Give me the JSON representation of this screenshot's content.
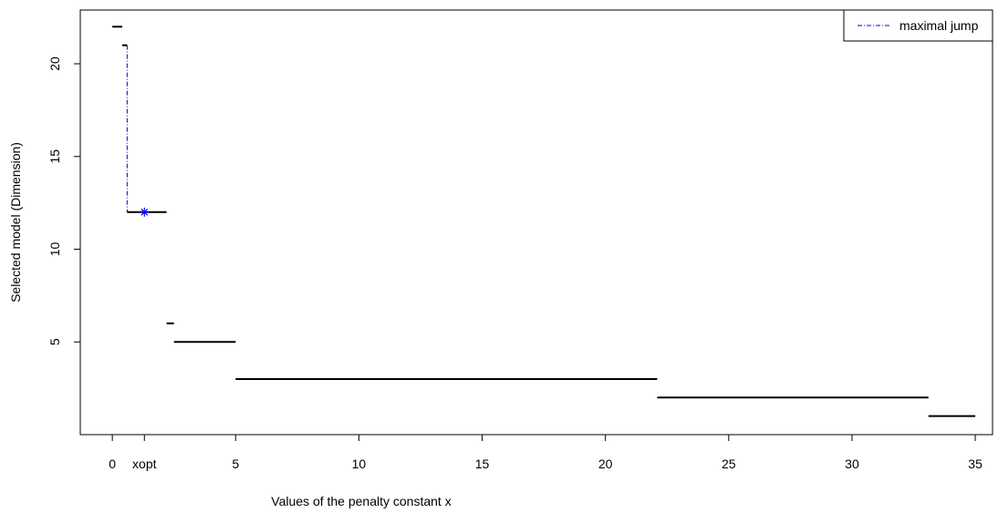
{
  "chart_data": {
    "type": "line",
    "title": "",
    "xlabel": "Values of the penalty constant x",
    "ylabel": "Selected model (Dimension)",
    "xlim": [
      -1.3,
      35.7
    ],
    "ylim": [
      0,
      22.9
    ],
    "x_ticks": [
      {
        "value": 0,
        "label": "0"
      },
      {
        "value": 1.3,
        "label": "xopt"
      },
      {
        "value": 5,
        "label": "5"
      },
      {
        "value": 10,
        "label": "10"
      },
      {
        "value": 15,
        "label": "15"
      },
      {
        "value": 20,
        "label": "20"
      },
      {
        "value": 25,
        "label": "25"
      },
      {
        "value": 30,
        "label": "30"
      },
      {
        "value": 35,
        "label": "35"
      }
    ],
    "y_ticks": [
      {
        "value": 5,
        "label": "5"
      },
      {
        "value": 10,
        "label": "10"
      },
      {
        "value": 15,
        "label": "15"
      },
      {
        "value": 20,
        "label": "20"
      }
    ],
    "segments": [
      {
        "x_start": 0.0,
        "x_end": 0.4,
        "y": 22
      },
      {
        "x_start": 0.4,
        "x_end": 0.6,
        "y": 21
      },
      {
        "x_start": 0.6,
        "x_end": 2.2,
        "y": 12
      },
      {
        "x_start": 2.2,
        "x_end": 2.5,
        "y": 6
      },
      {
        "x_start": 2.5,
        "x_end": 5.0,
        "y": 5
      },
      {
        "x_start": 5.0,
        "x_end": 22.1,
        "y": 3
      },
      {
        "x_start": 22.1,
        "x_end": 33.1,
        "y": 2
      },
      {
        "x_start": 33.1,
        "x_end": 35.0,
        "y": 1
      }
    ],
    "maximal_jump": {
      "x": 0.6,
      "y_from": 21,
      "y_to": 12
    },
    "xopt_point": {
      "x": 1.3,
      "y": 12
    },
    "legend": {
      "position": "top-right",
      "entries": [
        {
          "label": "maximal jump",
          "color": "#0000cc",
          "style": "dash-dot"
        }
      ]
    },
    "grid": false,
    "colors": {
      "steps": "#000000",
      "jump": "#0000cc",
      "point": "#0000ff"
    }
  }
}
